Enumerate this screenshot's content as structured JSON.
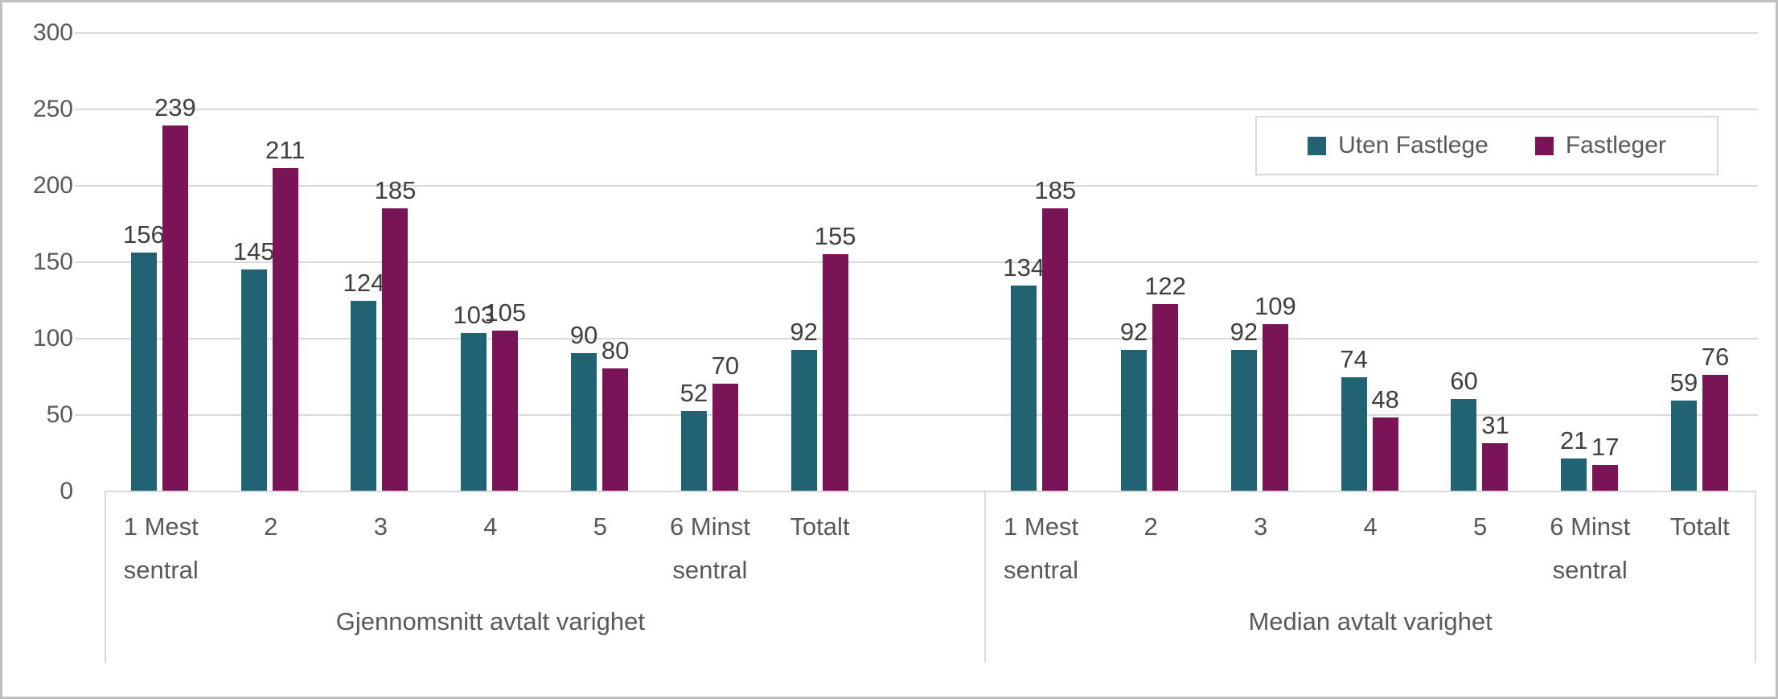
{
  "chart_data": {
    "type": "bar",
    "title": "",
    "categories": [
      "1 Mest sentral",
      "2",
      "3",
      "4",
      "5",
      "6 Minst sentral",
      "Totalt"
    ],
    "groups": [
      {
        "label": "Gjennomsnitt avtalt varighet",
        "series": [
          {
            "name": "Uten Fastlege",
            "values": [
              156,
              145,
              124,
              103,
              90,
              52,
              92
            ]
          },
          {
            "name": "Fastleger",
            "values": [
              239,
              211,
              185,
              105,
              80,
              70,
              155
            ]
          }
        ]
      },
      {
        "label": "Median avtalt varighet",
        "series": [
          {
            "name": "Uten Fastlege",
            "values": [
              134,
              92,
              92,
              74,
              60,
              21,
              59
            ]
          },
          {
            "name": "Fastleger",
            "values": [
              185,
              122,
              109,
              48,
              31,
              17,
              76
            ]
          }
        ]
      }
    ],
    "y_axis": {
      "min": 0,
      "max": 300,
      "step": 50,
      "ticks": [
        300,
        250,
        200,
        150,
        100,
        50,
        0
      ]
    },
    "legend": {
      "position": "top-right",
      "entries": [
        {
          "label": "Uten Fastlege",
          "color": "#216273"
        },
        {
          "label": "Fastleger",
          "color": "#7B1457"
        }
      ]
    },
    "layout": {
      "gridlines": "horizontal",
      "data_labels": "outside-end",
      "blank_slot_between_groups": true
    },
    "colors": {
      "series_uten_fastlege": "#216273",
      "series_fastleger": "#7B1457",
      "gridline": "#D9D9D9",
      "separator": "#D9D9D9",
      "axis_text": "#595959",
      "data_label_text": "#404040",
      "figure_border": "#BFBFBF",
      "background": "#FFFFFF"
    }
  }
}
